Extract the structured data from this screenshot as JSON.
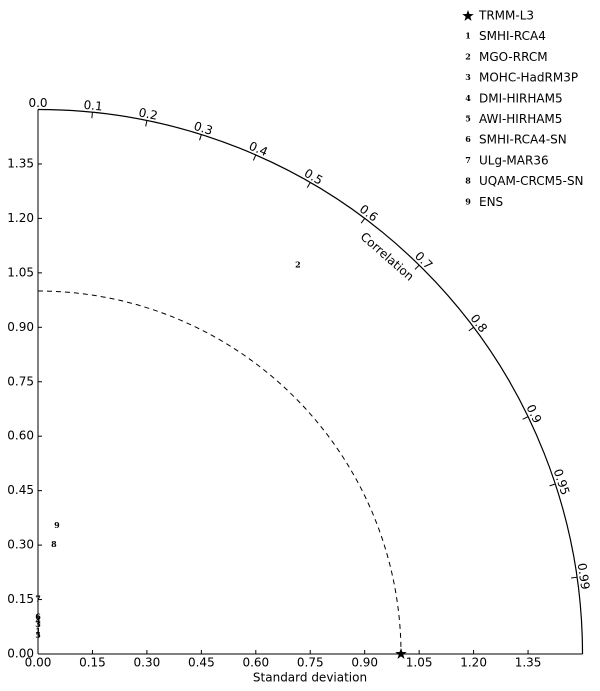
{
  "chart_data": {
    "type": "taylor",
    "xlabel": "Standard deviation",
    "corr_label": "Correlation",
    "xlim": [
      0,
      1.5
    ],
    "ylim": [
      0,
      1.5
    ],
    "xticks": [
      {
        "value": 0,
        "label": "0.00"
      },
      {
        "value": 0.15,
        "label": "0.15"
      },
      {
        "value": 0.3,
        "label": "0.30"
      },
      {
        "value": 0.45,
        "label": "0.45"
      },
      {
        "value": 0.6,
        "label": "0.60"
      },
      {
        "value": 0.75,
        "label": "0.75"
      },
      {
        "value": 0.9,
        "label": "0.90"
      },
      {
        "value": 1.05,
        "label": "1.05"
      },
      {
        "value": 1.2,
        "label": "1.20"
      },
      {
        "value": 1.35,
        "label": "1.35"
      }
    ],
    "yticks": [
      {
        "value": 0,
        "label": "0.00"
      },
      {
        "value": 0.15,
        "label": "0.15"
      },
      {
        "value": 0.3,
        "label": "0.30"
      },
      {
        "value": 0.45,
        "label": "0.45"
      },
      {
        "value": 0.6,
        "label": "0.60"
      },
      {
        "value": 0.75,
        "label": "0.75"
      },
      {
        "value": 0.9,
        "label": "0.90"
      },
      {
        "value": 1.05,
        "label": "1.05"
      },
      {
        "value": 1.2,
        "label": "1.20"
      },
      {
        "value": 1.35,
        "label": "1.35"
      }
    ],
    "corr_ticks": [
      {
        "value": 0,
        "label": "0.0"
      },
      0.1,
      0.2,
      0.3,
      0.4,
      0.5,
      0.6,
      0.7,
      0.8,
      0.9,
      0.95,
      0.99
    ],
    "reference": {
      "name": "TRMM-L3",
      "x": 1.0,
      "y": 0
    },
    "points": [
      {
        "label": "1",
        "name": "SMHI-RCA4",
        "x": 0.0,
        "y": 0.06
      },
      {
        "label": "2",
        "name": "MGO-RRCM",
        "x": 0.716,
        "y": 1.07
      },
      {
        "label": "3",
        "name": "MOHC-HadRM3P",
        "x": 0.0,
        "y": 0.08
      },
      {
        "label": "4",
        "name": "DMI-HIRHAM5",
        "x": 0.0,
        "y": 0.09
      },
      {
        "label": "5",
        "name": "AWI-HIRHAM5",
        "x": 0.0,
        "y": 0.05
      },
      {
        "label": "6",
        "name": "SMHI-RCA4-SN",
        "x": 0.0,
        "y": 0.1
      },
      {
        "label": "7",
        "name": "ULg-MAR36",
        "x": 0.0,
        "y": 0.15
      },
      {
        "label": "8",
        "name": "UQAM-CRCM5-SN",
        "x": 0.044,
        "y": 0.3
      },
      {
        "label": "9",
        "name": "ENS",
        "x": 0.052,
        "y": 0.353
      }
    ]
  }
}
